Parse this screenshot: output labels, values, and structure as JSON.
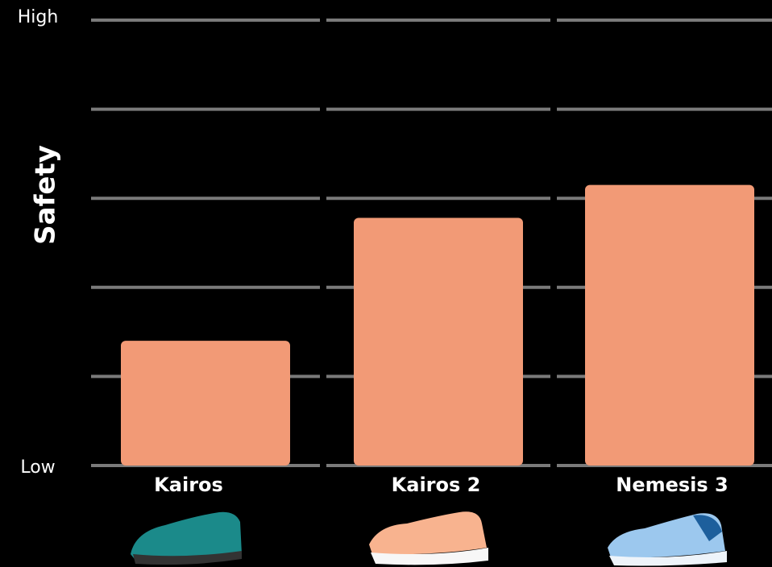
{
  "chart_data": {
    "type": "bar",
    "y_label": "Safety",
    "categories": [
      "Kairos",
      "Kairos 2",
      "Nemesis 3"
    ],
    "values": [
      1.4,
      2.78,
      3.15
    ],
    "color": "#f29a76",
    "ylim": [
      0,
      5
    ],
    "yticks": [
      {
        "value": 0,
        "label": "Low"
      },
      {
        "value": 5,
        "label": "High"
      }
    ],
    "gridlines": [
      0,
      1,
      2,
      3,
      4,
      5
    ],
    "grid": true
  }
}
